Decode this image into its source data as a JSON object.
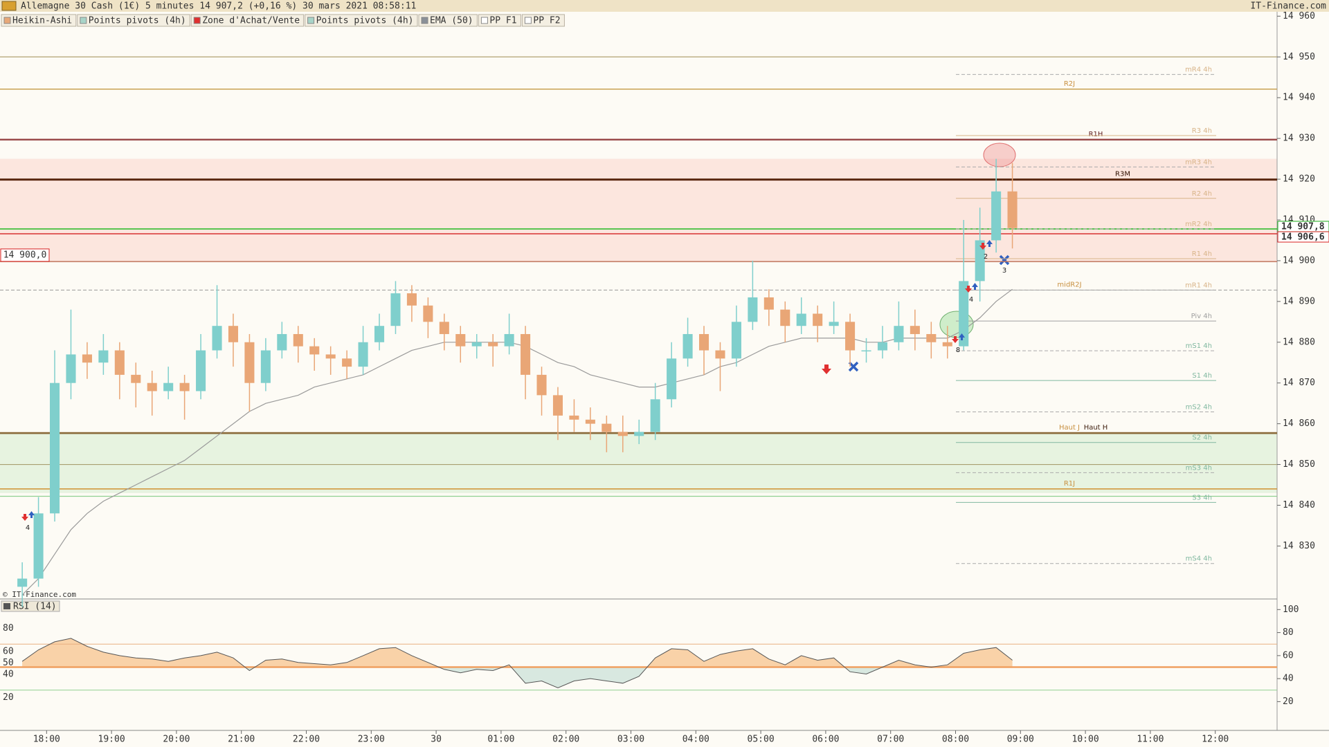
{
  "chart_data": {
    "type": "candlestick",
    "title": "Allemagne 30 Cash (1€) 5 minutes 14 907,2 (+0,16 %) 30 mars 2021 08:58:11",
    "source": "IT-Finance.com",
    "watermark": "© IT-Finance.com",
    "indicators": [
      {
        "name": "Heikin-Ashi",
        "color": "#e8a878"
      },
      {
        "name": "Points pivots (4h)",
        "color": "#a8d4c8"
      },
      {
        "name": "Zone d'Achat/Vente",
        "color": "#e03030"
      },
      {
        "name": "Points pivots (4h)",
        "color": "#a8d4c8"
      },
      {
        "name": "EMA (50)",
        "color": "#8a9098"
      },
      {
        "name": "PP F1",
        "color": "#ffffff"
      },
      {
        "name": "PP F2",
        "color": "#ffffff"
      }
    ],
    "bull_color": "#7fcfcc",
    "bear_color": "#e9a676",
    "candles": [
      [
        14820,
        14826,
        14815,
        14822
      ],
      [
        14822,
        14842,
        14820,
        14838
      ],
      [
        14838,
        14878,
        14836,
        14870
      ],
      [
        14870,
        14888,
        14866,
        14877
      ],
      [
        14877,
        14880,
        14871,
        14875
      ],
      [
        14875,
        14882,
        14872,
        14878
      ],
      [
        14878,
        14880,
        14866,
        14872
      ],
      [
        14872,
        14875,
        14864,
        14870
      ],
      [
        14870,
        14873,
        14862,
        14868
      ],
      [
        14868,
        14874,
        14866,
        14870
      ],
      [
        14870,
        14872,
        14861,
        14868
      ],
      [
        14868,
        14882,
        14866,
        14878
      ],
      [
        14878,
        14894,
        14876,
        14884
      ],
      [
        14884,
        14887,
        14874,
        14880
      ],
      [
        14880,
        14882,
        14863,
        14870
      ],
      [
        14870,
        14881,
        14868,
        14878
      ],
      [
        14878,
        14885,
        14876,
        14882
      ],
      [
        14882,
        14884,
        14875,
        14879
      ],
      [
        14879,
        14881,
        14873,
        14877
      ],
      [
        14877,
        14879,
        14872,
        14876
      ],
      [
        14876,
        14878,
        14871,
        14874
      ],
      [
        14874,
        14884,
        14872,
        14880
      ],
      [
        14880,
        14887,
        14878,
        14884
      ],
      [
        14884,
        14895,
        14882,
        14892
      ],
      [
        14892,
        14894,
        14885,
        14889
      ],
      [
        14889,
        14891,
        14881,
        14885
      ],
      [
        14885,
        14887,
        14878,
        14882
      ],
      [
        14882,
        14884,
        14875,
        14879
      ],
      [
        14879,
        14882,
        14876,
        14880
      ],
      [
        14880,
        14882,
        14874,
        14879
      ],
      [
        14879,
        14887,
        14877,
        14882
      ],
      [
        14882,
        14884,
        14866,
        14872
      ],
      [
        14872,
        14874,
        14862,
        14867
      ],
      [
        14867,
        14869,
        14856,
        14862
      ],
      [
        14862,
        14866,
        14858,
        14861
      ],
      [
        14861,
        14864,
        14856,
        14860
      ],
      [
        14860,
        14862,
        14853,
        14858
      ],
      [
        14858,
        14862,
        14853,
        14857
      ],
      [
        14857,
        14861,
        14855,
        14858
      ],
      [
        14858,
        14870,
        14856,
        14866
      ],
      [
        14866,
        14880,
        14864,
        14876
      ],
      [
        14876,
        14886,
        14874,
        14882
      ],
      [
        14882,
        14884,
        14872,
        14878
      ],
      [
        14878,
        14880,
        14868,
        14876
      ],
      [
        14876,
        14889,
        14874,
        14885
      ],
      [
        14885,
        14900,
        14883,
        14891
      ],
      [
        14891,
        14893,
        14884,
        14888
      ],
      [
        14888,
        14890,
        14880,
        14884
      ],
      [
        14884,
        14891,
        14882,
        14887
      ],
      [
        14887,
        14889,
        14880,
        14884
      ],
      [
        14884,
        14890,
        14882,
        14885
      ],
      [
        14885,
        14887,
        14874,
        14878
      ],
      [
        14878,
        14881,
        14875,
        14878
      ],
      [
        14878,
        14884,
        14876,
        14880
      ],
      [
        14880,
        14890,
        14878,
        14884
      ],
      [
        14884,
        14888,
        14878,
        14882
      ],
      [
        14882,
        14885,
        14876,
        14880
      ],
      [
        14880,
        14884,
        14876,
        14879
      ],
      [
        14879,
        14910,
        14878,
        14895
      ],
      [
        14895,
        14913,
        14890,
        14905
      ],
      [
        14905,
        14925,
        14902,
        14917
      ],
      [
        14917,
        14924,
        14903,
        14908
      ]
    ],
    "ema": {
      "color": "#9a9a9a",
      "values": [
        14818,
        14822,
        14828,
        14834,
        14838,
        14841,
        14843,
        14845,
        14847,
        14849,
        14851,
        14854,
        14857,
        14860,
        14863,
        14865,
        14866,
        14867,
        14869,
        14870,
        14871,
        14872,
        14874,
        14876,
        14878,
        14879,
        14880,
        14880,
        14880,
        14880,
        14880,
        14879,
        14877,
        14875,
        14874,
        14872,
        14871,
        14870,
        14869,
        14869,
        14870,
        14871,
        14872,
        14874,
        14875,
        14877,
        14879,
        14880,
        14881,
        14881,
        14881,
        14881,
        14880,
        14880,
        14881,
        14881,
        14881,
        14881,
        14883,
        14886,
        14890,
        14893
      ]
    },
    "ylim": [
      14817,
      14960.4
    ],
    "yticks": [
      {
        "value": 14830,
        "label": "14 830"
      },
      {
        "value": 14840,
        "label": "14 840"
      },
      {
        "value": 14850,
        "label": "14 850"
      },
      {
        "value": 14860,
        "label": "14 860"
      },
      {
        "value": 14870,
        "label": "14 870"
      },
      {
        "value": 14880,
        "label": "14 880"
      },
      {
        "value": 14890,
        "label": "14 890"
      },
      {
        "value": 14900,
        "label": "14 900"
      },
      {
        "value": 14910,
        "label": "14 910"
      },
      {
        "value": 14920,
        "label": "14 920"
      },
      {
        "value": 14930,
        "label": "14 930"
      },
      {
        "value": 14940,
        "label": "14 940"
      },
      {
        "value": 14950,
        "label": "14 950"
      },
      {
        "value": 14960,
        "label": "14 960"
      }
    ],
    "xtick_labels": [
      "18:00",
      "19:00",
      "20:00",
      "21:00",
      "22:00",
      "23:00",
      "30",
      "01:00",
      "02:00",
      "03:00",
      "04:00",
      "05:00",
      "06:00",
      "07:00",
      "08:00",
      "09:00",
      "10:00",
      "11:00",
      "12:00"
    ],
    "zones": [
      {
        "from": 14899.6,
        "to": 14925,
        "color": "#fce6de"
      },
      {
        "from": 14843,
        "to": 14857.7,
        "color": "#e7f3e0"
      }
    ],
    "levels": [
      {
        "value": 14950,
        "color": "#b0a070",
        "width": 1.2
      },
      {
        "value": 14942.1,
        "color": "#c8a050",
        "width": 1.5,
        "label": "R2J"
      },
      {
        "value": 14929.7,
        "color": "#9a4a4a",
        "width": 2.5,
        "label": "R1H"
      },
      {
        "value": 14919.9,
        "color": "#5a2810",
        "width": 3,
        "label": "R3M"
      },
      {
        "value": 14907.8,
        "color": "#22b822",
        "width": 1.5
      },
      {
        "value": 14906.6,
        "color": "#d83030",
        "width": 1.5
      },
      {
        "value": 14899.8,
        "color": "#c07860",
        "width": 1.5
      },
      {
        "value": 14892.8,
        "color": "#999999",
        "width": 1,
        "dashed": true,
        "label": "midR2J"
      },
      {
        "value": 14857.7,
        "color": "#8a6a3a",
        "width": 2.5,
        "label": "Haut J"
      },
      {
        "value": 14857.7,
        "color": "#8a6a3a",
        "width": 2.5,
        "label": "Haut H"
      },
      {
        "value": 14850,
        "color": "#a8a070",
        "width": 1.2
      },
      {
        "value": 14844,
        "color": "#d09030",
        "width": 1.5,
        "label": "R1J"
      },
      {
        "value": 14842.2,
        "color": "#90d090",
        "width": 1.2
      }
    ],
    "pivots": [
      {
        "name": "mR4 4h",
        "value": 14945.7,
        "color": "#d8b488",
        "dashed": true
      },
      {
        "name": "R3 4h",
        "value": 14930.7,
        "color": "#d8b488"
      },
      {
        "name": "mR3 4h",
        "value": 14923,
        "color": "#d8b488",
        "dashed": true
      },
      {
        "name": "R2 4h",
        "value": 14915.3,
        "color": "#d8b488"
      },
      {
        "name": "mR2 4h",
        "value": 14907.8,
        "color": "#d8b488",
        "dashed": true
      },
      {
        "name": "R1 4h",
        "value": 14900.5,
        "color": "#d8b488"
      },
      {
        "name": "mR1 4h",
        "value": 14892.8,
        "color": "#d8b488",
        "dashed": true
      },
      {
        "name": "Piv 4h",
        "value": 14885.2,
        "color": "#a0a0a0"
      },
      {
        "name": "mS1 4h",
        "value": 14877.9,
        "color": "#80b8a0",
        "dashed": true
      },
      {
        "name": "S1 4h",
        "value": 14870.6,
        "color": "#80b8a0"
      },
      {
        "name": "mS2 4h",
        "value": 14862.9,
        "color": "#80b8a0",
        "dashed": true
      },
      {
        "name": "S2 4h",
        "value": 14855.4,
        "color": "#80b8a0"
      },
      {
        "name": "mS3 4h",
        "value": 14848,
        "color": "#80b8a0",
        "dashed": true
      },
      {
        "name": "S3 4h",
        "value": 14840.7,
        "color": "#80b8a0"
      },
      {
        "name": "mS4 4h",
        "value": 14825.7,
        "color": "#80b8a0",
        "dashed": true
      }
    ],
    "price_tags": [
      {
        "value": 14907.8,
        "label": "14 907,8",
        "color": "#18a818"
      },
      {
        "value": 14906.6,
        "label": "14 906,6",
        "color": "#d82020"
      }
    ],
    "left_tag": {
      "value": 14900,
      "label": "14 900,0",
      "color": "#d82020"
    },
    "signal_labels": [
      "4",
      "2",
      "4",
      "8",
      "3"
    ],
    "rsi": {
      "title": "RSI (14)",
      "color": "#555555",
      "values": [
        55,
        65,
        72,
        75,
        68,
        63,
        60,
        58,
        57,
        55,
        58,
        60,
        63,
        58,
        47,
        56,
        57,
        54,
        53,
        52,
        54,
        60,
        66,
        67,
        60,
        54,
        48,
        45,
        48,
        47,
        52,
        36,
        38,
        32,
        38,
        40,
        38,
        36,
        42,
        58,
        66,
        65,
        55,
        61,
        64,
        66,
        57,
        52,
        60,
        56,
        58,
        46,
        44,
        50,
        56,
        52,
        50,
        52,
        62,
        65,
        67,
        56
      ],
      "ylim": [
        -5,
        108
      ],
      "yticks": [
        20,
        40,
        60,
        80,
        100
      ],
      "left_ticks": [
        20,
        40,
        50,
        60,
        80
      ],
      "levels": [
        {
          "value": 70,
          "color": "#e8b080",
          "width": 1
        },
        {
          "value": 50,
          "color": "#f0a060",
          "width": 2.5
        },
        {
          "value": 30,
          "color": "#90d090",
          "width": 1
        }
      ]
    }
  }
}
